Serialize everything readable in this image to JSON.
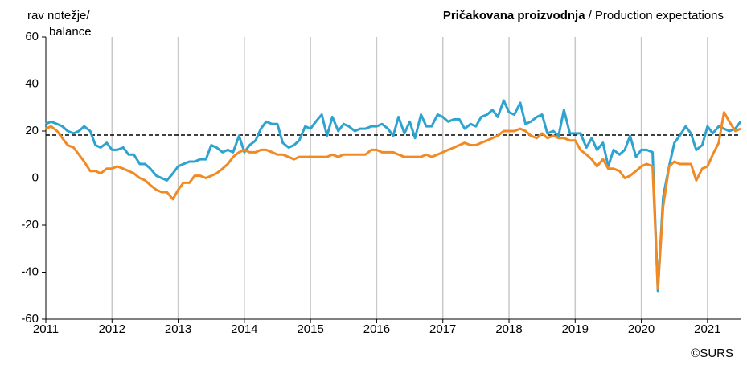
{
  "chart_data": {
    "type": "line",
    "title": "Pričakovana proizvodnja",
    "title_en": "/ Production expectations",
    "ylabel": [
      "rav notežje/",
      "balance"
    ],
    "source": "©SURS",
    "xlim": [
      2011,
      2021.5
    ],
    "xticks": [
      2011,
      2012,
      2013,
      2014,
      2015,
      2016,
      2017,
      2018,
      2019,
      2020,
      2021
    ],
    "ylim": [
      -60,
      60
    ],
    "yticks": [
      -60,
      -40,
      -20,
      0,
      20,
      40,
      60
    ],
    "grid": "x",
    "hline": 18.3,
    "x": [
      2011,
      2011.08,
      2011.17,
      2011.25,
      2011.33,
      2011.42,
      2011.5,
      2011.58,
      2011.67,
      2011.75,
      2011.83,
      2011.92,
      2012,
      2012.08,
      2012.17,
      2012.25,
      2012.33,
      2012.42,
      2012.5,
      2012.58,
      2012.67,
      2012.75,
      2012.83,
      2012.92,
      2013,
      2013.08,
      2013.17,
      2013.25,
      2013.33,
      2013.42,
      2013.5,
      2013.58,
      2013.67,
      2013.75,
      2013.83,
      2013.92,
      2014,
      2014.08,
      2014.17,
      2014.25,
      2014.33,
      2014.42,
      2014.5,
      2014.58,
      2014.67,
      2014.75,
      2014.83,
      2014.92,
      2015,
      2015.08,
      2015.17,
      2015.25,
      2015.33,
      2015.42,
      2015.5,
      2015.58,
      2015.67,
      2015.75,
      2015.83,
      2015.92,
      2016,
      2016.08,
      2016.17,
      2016.25,
      2016.33,
      2016.42,
      2016.5,
      2016.58,
      2016.67,
      2016.75,
      2016.83,
      2016.92,
      2017,
      2017.08,
      2017.17,
      2017.25,
      2017.33,
      2017.42,
      2017.5,
      2017.58,
      2017.67,
      2017.75,
      2017.83,
      2017.92,
      2018,
      2018.08,
      2018.17,
      2018.25,
      2018.33,
      2018.42,
      2018.5,
      2018.58,
      2018.67,
      2018.75,
      2018.83,
      2018.92,
      2019,
      2019.08,
      2019.17,
      2019.25,
      2019.33,
      2019.42,
      2019.5,
      2019.58,
      2019.67,
      2019.75,
      2019.83,
      2019.92,
      2020,
      2020.08,
      2020.17,
      2020.25,
      2020.33,
      2020.42,
      2020.5,
      2020.58,
      2020.67,
      2020.75,
      2020.83,
      2020.92,
      2021,
      2021.08,
      2021.17,
      2021.25,
      2021.33,
      2021.42,
      2021.5
    ],
    "series": [
      {
        "color": "#2ea3cf",
        "values": [
          23,
          24,
          23,
          22,
          20,
          19,
          20,
          22,
          20,
          14,
          13,
          15,
          12,
          12,
          13,
          10,
          10,
          6,
          6,
          4,
          1,
          0,
          -1,
          2,
          5,
          6,
          7,
          7,
          8,
          8,
          14,
          13,
          11,
          12,
          11,
          18,
          11,
          14,
          16,
          21,
          24,
          23,
          23,
          15,
          13,
          14,
          16,
          22,
          21,
          24,
          27,
          18,
          26,
          20,
          23,
          22,
          20,
          21,
          21,
          22,
          22,
          23,
          21,
          18,
          26,
          19,
          24,
          17,
          27,
          22,
          22,
          27,
          26,
          24,
          25,
          25,
          21,
          23,
          22,
          26,
          27,
          29,
          26,
          33,
          28,
          27,
          32,
          23,
          24,
          26,
          27,
          19,
          20,
          18,
          29,
          19,
          19,
          19,
          13,
          17,
          12,
          15,
          5,
          12,
          10,
          12,
          18,
          9,
          12,
          12,
          11,
          -48,
          -8,
          5,
          15,
          18,
          22,
          19,
          12,
          14,
          22,
          19,
          22,
          21,
          20,
          21,
          24
        ]
      },
      {
        "color": "#f28a24",
        "values": [
          21,
          22,
          20,
          17,
          14,
          13,
          10,
          7,
          3,
          3,
          2,
          4,
          4,
          5,
          4,
          3,
          2,
          0,
          -1,
          -3,
          -5,
          -6,
          -6,
          -9,
          -5,
          -2,
          -2,
          1,
          1,
          0,
          1,
          2,
          4,
          6,
          9,
          11,
          12,
          11,
          11,
          12,
          12,
          11,
          10,
          10,
          9,
          8,
          9,
          9,
          9,
          9,
          9,
          9,
          10,
          9,
          10,
          10,
          10,
          10,
          10,
          12,
          12,
          11,
          11,
          11,
          10,
          9,
          9,
          9,
          9,
          10,
          9,
          10,
          11,
          12,
          13,
          14,
          15,
          14,
          14,
          15,
          16,
          17,
          18,
          20,
          20,
          20,
          21,
          20,
          18,
          17,
          19,
          17,
          18,
          17,
          17,
          16,
          16,
          12,
          10,
          8,
          5,
          8,
          4,
          4,
          3,
          0,
          1,
          3,
          5,
          6,
          5,
          -47,
          -12,
          5,
          7,
          6,
          6,
          6,
          -1,
          4,
          5,
          10,
          15,
          28,
          24,
          20,
          21
        ]
      }
    ]
  }
}
